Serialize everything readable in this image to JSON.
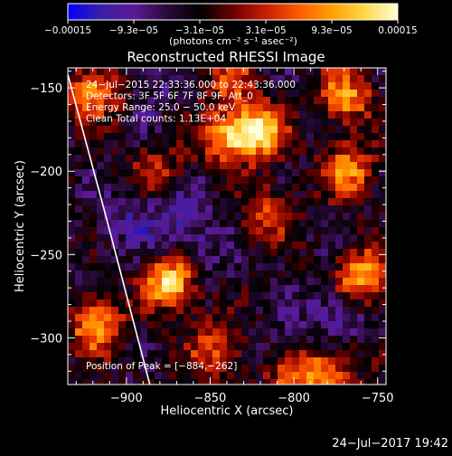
{
  "chart_data": {
    "type": "heatmap",
    "title": "Reconstructed RHESSI Image",
    "xlabel": "Heliocentric X (arcsec)",
    "ylabel": "Heliocentric Y (arcsec)",
    "xlim": [
      -935,
      -745
    ],
    "ylim": [
      -328,
      -138
    ],
    "x_ticks": [
      -900,
      -850,
      -800,
      -750
    ],
    "y_ticks": [
      -150,
      -200,
      -250,
      -300
    ],
    "x_tick_labels": [
      "−900",
      "−850",
      "−800",
      "−750"
    ],
    "y_tick_labels": [
      "−150",
      "−200",
      "−250",
      "−300"
    ],
    "colorbar": {
      "labels": [
        "−0.00015",
        "−9.3e−05",
        "−3.1e−05",
        "3.1e−05",
        "9.3e−05",
        "0.00015"
      ],
      "unit_label": "(photons cm⁻² s⁻¹ asec⁻²)",
      "colormap": [
        "#0000ff",
        "#3a1ea8",
        "#5a1a96",
        "#2a0a3a",
        "#000000",
        "#6a0000",
        "#c81e00",
        "#ff5a00",
        "#ffa000",
        "#ffd84a",
        "#ffffd8"
      ]
    },
    "annotations": [
      "24−Jul−2015 22:33:36.000 to 22:43:36.000",
      "Detectors: 3F 5F 6F 7F 8F 9F, Att_0",
      "Energy Range: 25.0 − 50.0 keV",
      "Clean      Total counts: 1.13E+04"
    ],
    "peak_label": "Position of Peak = [−884,−262]",
    "peak": [
      -884,
      -262
    ],
    "limb_arc": [
      [
        -935,
        -142
      ],
      [
        -912,
        -228
      ],
      [
        -886,
        -328
      ]
    ],
    "hot_spots": [
      {
        "x": -822,
        "y": -176,
        "level": 1.0
      },
      {
        "x": -873,
        "y": -266,
        "level": 0.95
      },
      {
        "x": -759,
        "y": -264,
        "level": 0.85
      },
      {
        "x": -919,
        "y": -152,
        "level": 0.7
      },
      {
        "x": -842,
        "y": -180,
        "level": 0.6
      },
      {
        "x": -918,
        "y": -293,
        "level": 0.75
      },
      {
        "x": -767,
        "y": -200,
        "level": 0.65
      },
      {
        "x": -770,
        "y": -155,
        "level": 0.7
      },
      {
        "x": -815,
        "y": -225,
        "level": 0.5
      },
      {
        "x": -800,
        "y": -325,
        "level": 0.55
      },
      {
        "x": -847,
        "y": -306,
        "level": 0.5
      },
      {
        "x": -880,
        "y": -200,
        "level": 0.4
      },
      {
        "x": -838,
        "y": -145,
        "level": 0.45
      },
      {
        "x": -780,
        "y": -320,
        "level": 0.6
      }
    ],
    "cold_spots": [
      {
        "x": -868,
        "y": -225,
        "level": 0.8
      },
      {
        "x": -775,
        "y": -282,
        "level": 0.75
      },
      {
        "x": -900,
        "y": -230,
        "level": 0.6
      },
      {
        "x": -858,
        "y": -250,
        "level": 0.55
      },
      {
        "x": -800,
        "y": -305,
        "level": 0.4
      },
      {
        "x": -885,
        "y": -148,
        "level": 0.45
      }
    ],
    "grid": false
  },
  "footer": {
    "timestamp": "24−Jul−2017 19:42"
  }
}
